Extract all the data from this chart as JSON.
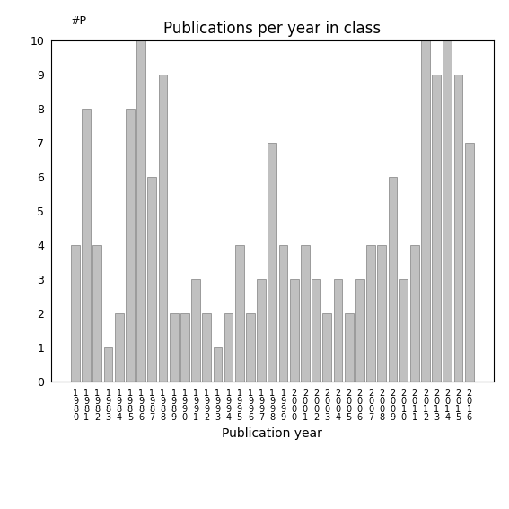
{
  "title": "Publications per year in class",
  "xlabel": "Publication year",
  "ylabel": "#P",
  "categories": [
    "1\n9\n8\n0",
    "1\n9\n8\n1",
    "1\n9\n8\n2",
    "1\n9\n8\n3",
    "1\n9\n8\n4",
    "1\n9\n8\n5",
    "1\n9\n8\n6",
    "1\n9\n8\n7",
    "1\n9\n8\n8",
    "1\n9\n8\n9",
    "1\n9\n9\n0",
    "1\n9\n9\n1",
    "1\n9\n9\n2",
    "1\n9\n9\n3",
    "1\n9\n9\n4",
    "1\n9\n9\n5",
    "1\n9\n9\n6",
    "1\n9\n9\n7",
    "1\n9\n9\n8",
    "1\n9\n9\n9",
    "2\n0\n0\n0",
    "2\n0\n0\n1",
    "2\n0\n0\n2",
    "2\n0\n0\n3",
    "2\n0\n0\n4",
    "2\n0\n0\n5",
    "2\n0\n0\n6",
    "2\n0\n0\n7",
    "2\n0\n0\n8",
    "2\n0\n0\n9",
    "2\n0\n1\n0",
    "2\n0\n1\n1",
    "2\n0\n1\n2",
    "2\n0\n1\n3",
    "2\n0\n1\n4",
    "2\n0\n1\n5",
    "2\n0\n1\n6"
  ],
  "values": [
    4,
    8,
    4,
    1,
    2,
    8,
    10,
    6,
    9,
    2,
    2,
    3,
    2,
    1,
    2,
    4,
    2,
    3,
    7,
    4,
    3,
    4,
    3,
    2,
    3,
    2,
    3,
    4,
    4,
    6,
    3,
    4,
    10,
    9,
    10,
    9,
    7
  ],
  "bar_color": "#c0c0c0",
  "bar_edge_color": "#808080",
  "ylim": [
    0,
    10
  ],
  "yticks": [
    0,
    1,
    2,
    3,
    4,
    5,
    6,
    7,
    8,
    9,
    10
  ],
  "title_fontsize": 12,
  "axis_label_fontsize": 10,
  "tick_fontsize": 7,
  "ylabel_fontsize": 9
}
